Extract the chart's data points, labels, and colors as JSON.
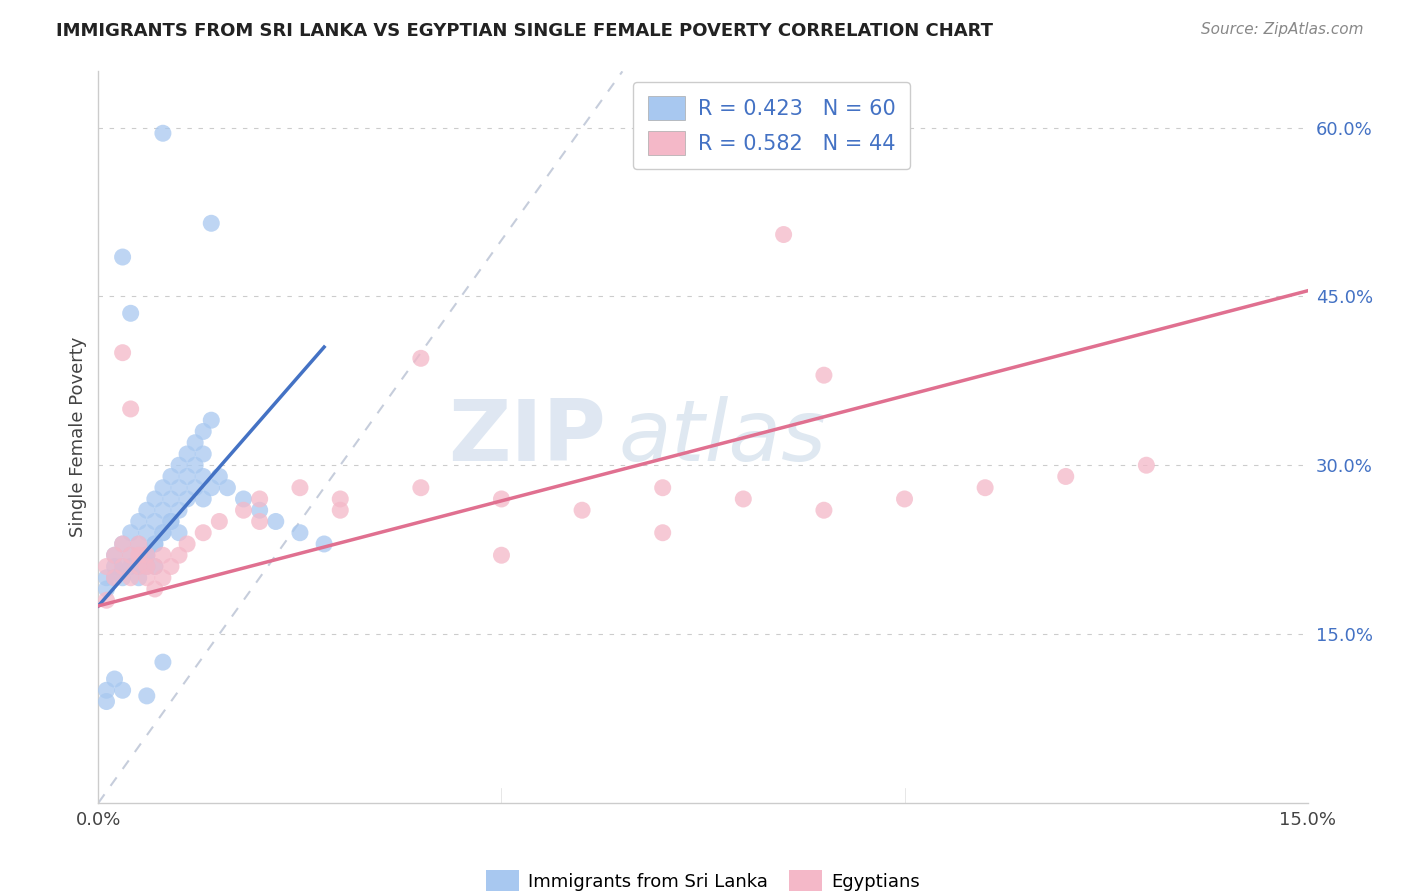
{
  "title": "IMMIGRANTS FROM SRI LANKA VS EGYPTIAN SINGLE FEMALE POVERTY CORRELATION CHART",
  "source": "Source: ZipAtlas.com",
  "ylabel_text": "Single Female Poverty",
  "xlim": [
    0.0,
    0.15
  ],
  "ylim": [
    0.0,
    0.65
  ],
  "x_tick_positions": [
    0.0,
    0.15
  ],
  "x_tick_labels": [
    "0.0%",
    "15.0%"
  ],
  "y_tick_positions": [
    0.15,
    0.3,
    0.45,
    0.6
  ],
  "y_tick_labels": [
    "15.0%",
    "30.0%",
    "45.0%",
    "60.0%"
  ],
  "sri_lanka_R": 0.423,
  "sri_lanka_N": 60,
  "egypt_R": 0.582,
  "egypt_N": 44,
  "sri_lanka_color": "#a8c8f0",
  "egypt_color": "#f4b8c8",
  "sri_lanka_line_color": "#4472c4",
  "egypt_line_color": "#e07090",
  "diagonal_color": "#c0c8d8",
  "stat_color": "#4472c4",
  "legend_label_sri": "Immigrants from Sri Lanka",
  "legend_label_egypt": "Egyptians",
  "watermark_text": "ZIP atlas",
  "sri_lanka_x": [
    0.002,
    0.003,
    0.003,
    0.004,
    0.004,
    0.005,
    0.005,
    0.005,
    0.006,
    0.006,
    0.006,
    0.007,
    0.007,
    0.007,
    0.007,
    0.008,
    0.008,
    0.008,
    0.009,
    0.009,
    0.009,
    0.01,
    0.01,
    0.011,
    0.011,
    0.012,
    0.012,
    0.013,
    0.013,
    0.014,
    0.001,
    0.001,
    0.002,
    0.002,
    0.003,
    0.004,
    0.005,
    0.006,
    0.006,
    0.007,
    0.008,
    0.009,
    0.01,
    0.01,
    0.011,
    0.012,
    0.013,
    0.013,
    0.014,
    0.015,
    0.016,
    0.018,
    0.02,
    0.022,
    0.025,
    0.028,
    0.001,
    0.001,
    0.002,
    0.003
  ],
  "sri_lanka_y": [
    0.22,
    0.23,
    0.21,
    0.24,
    0.22,
    0.25,
    0.23,
    0.21,
    0.26,
    0.24,
    0.22,
    0.27,
    0.25,
    0.23,
    0.21,
    0.28,
    0.26,
    0.24,
    0.29,
    0.27,
    0.25,
    0.3,
    0.28,
    0.31,
    0.29,
    0.32,
    0.3,
    0.33,
    0.31,
    0.34,
    0.2,
    0.19,
    0.2,
    0.21,
    0.2,
    0.21,
    0.2,
    0.21,
    0.22,
    0.23,
    0.24,
    0.25,
    0.24,
    0.26,
    0.27,
    0.28,
    0.29,
    0.27,
    0.28,
    0.29,
    0.28,
    0.27,
    0.26,
    0.25,
    0.24,
    0.23,
    0.1,
    0.09,
    0.11,
    0.1
  ],
  "egypt_x": [
    0.001,
    0.002,
    0.002,
    0.003,
    0.003,
    0.004,
    0.004,
    0.005,
    0.005,
    0.006,
    0.006,
    0.007,
    0.007,
    0.008,
    0.008,
    0.009,
    0.01,
    0.011,
    0.013,
    0.015,
    0.018,
    0.02,
    0.025,
    0.03,
    0.04,
    0.05,
    0.06,
    0.07,
    0.08,
    0.09,
    0.1,
    0.11,
    0.12,
    0.13,
    0.003,
    0.004,
    0.005,
    0.006,
    0.02,
    0.03,
    0.05,
    0.07,
    0.09,
    0.001
  ],
  "egypt_y": [
    0.21,
    0.22,
    0.2,
    0.23,
    0.21,
    0.22,
    0.2,
    0.23,
    0.21,
    0.22,
    0.2,
    0.21,
    0.19,
    0.22,
    0.2,
    0.21,
    0.22,
    0.23,
    0.24,
    0.25,
    0.26,
    0.27,
    0.28,
    0.27,
    0.28,
    0.27,
    0.26,
    0.28,
    0.27,
    0.26,
    0.27,
    0.28,
    0.29,
    0.3,
    0.4,
    0.35,
    0.22,
    0.21,
    0.25,
    0.26,
    0.22,
    0.24,
    0.38,
    0.18
  ]
}
